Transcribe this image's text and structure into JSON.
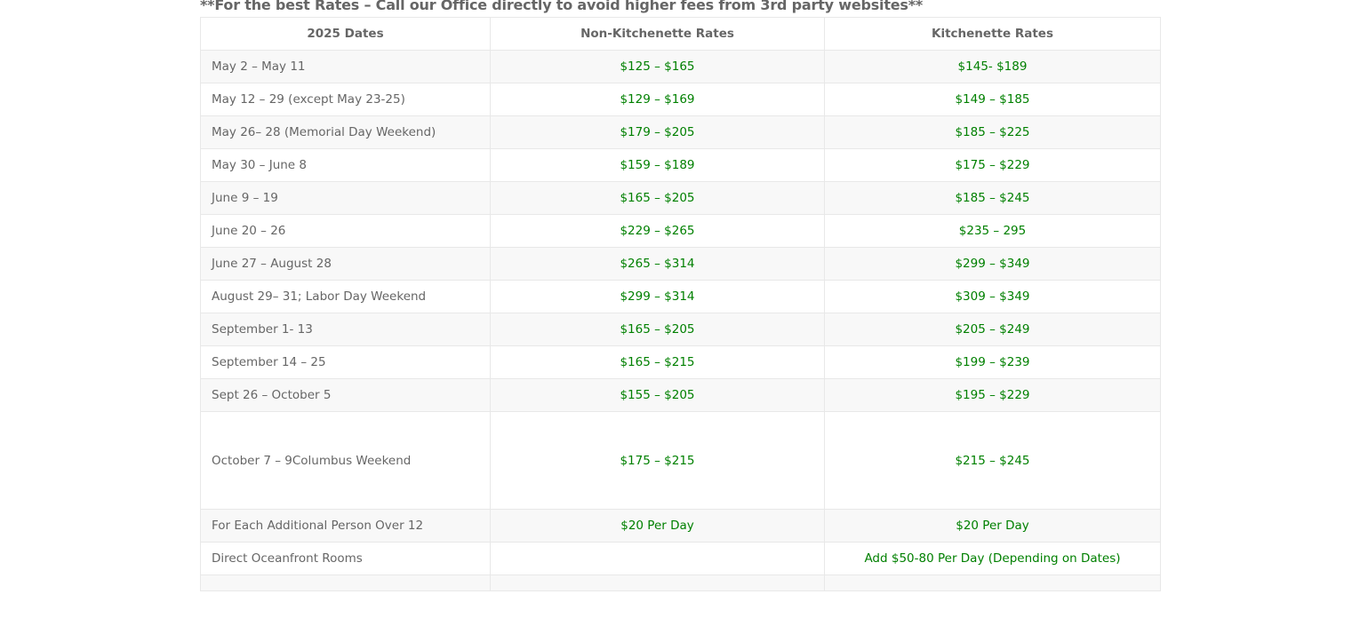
{
  "notice": "**For the best Rates – Call our Office directly to avoid higher fees from 3rd party websites**",
  "headers": [
    "2025 Dates",
    "Non-Kitchenette Rates",
    "Kitchenette Rates"
  ],
  "colors": {
    "rate_text": "#008000",
    "body_text": "#666666"
  },
  "rows": [
    [
      "May 2 – May 11",
      "$125 – $165",
      "$145- $189"
    ],
    [
      "May 12 – 29 (except May 23-25)",
      "$129 – $169",
      "$149 – $185"
    ],
    [
      "May 26– 28 (Memorial Day Weekend)",
      "$179 – $205",
      "$185 – $225"
    ],
    [
      "May 30 – June 8",
      "$159 – $189",
      "$175 – $229"
    ],
    [
      "June 9 – 19",
      "$165 – $205",
      "$185 – $245"
    ],
    [
      "June 20 – 26",
      "$229 – $265",
      "$235 – 295"
    ],
    [
      "June 27 – August  28",
      "$265 – $314",
      "$299 – $349"
    ],
    [
      "August 29– 31; Labor Day Weekend",
      "$299 – $314",
      "$309 – $349"
    ],
    [
      "September 1- 13",
      "$165 – $205",
      "$205 – $249"
    ],
    [
      "September 14 – 25",
      "$165 – $215",
      "$199 – $239"
    ],
    [
      "Sept 26 – October 5",
      "$155 – $205",
      "$195 – $229"
    ],
    [
      "October 7 – 9Columbus Weekend",
      "$175 – $215",
      "$215 – $245"
    ],
    [
      "For Each Additional Person Over 12",
      "$20 Per Day",
      "$20 Per Day"
    ],
    [
      "Direct Oceanfront Rooms",
      "",
      "Add $50-80 Per Day (Depending on Dates)"
    ],
    [
      "",
      "",
      ""
    ]
  ]
}
